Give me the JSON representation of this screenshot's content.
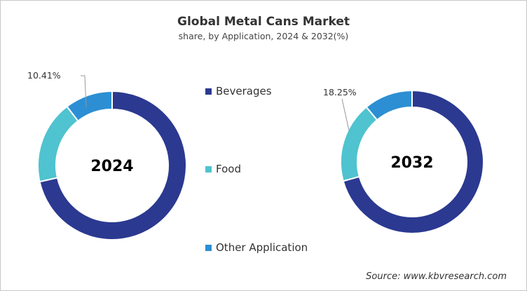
{
  "chart_data": [
    {
      "type": "pie",
      "title": "Global Metal Cans Market",
      "subtitle": "share, by Application, 2024 & 2032(%)",
      "center_label": "2024",
      "categories": [
        "Beverages",
        "Food",
        "Other Application"
      ],
      "values": [
        71.5,
        18.09,
        10.41
      ],
      "data_labels": [
        "",
        "",
        "10.41%"
      ],
      "donut": true
    },
    {
      "type": "pie",
      "center_label": "2032",
      "categories": [
        "Beverages",
        "Food",
        "Other Application"
      ],
      "values": [
        70.7,
        18.25,
        11.05
      ],
      "data_labels": [
        "",
        "18.25%",
        ""
      ],
      "donut": true
    }
  ],
  "legend": {
    "placement": "center",
    "items": [
      "Beverages",
      "Food",
      "Other Application"
    ]
  },
  "colors": {
    "Beverages": "#2b3990",
    "Food": "#4fc3cf",
    "Other Application": "#2c8fd3"
  },
  "source": "Source: www.kbvresearch.com"
}
